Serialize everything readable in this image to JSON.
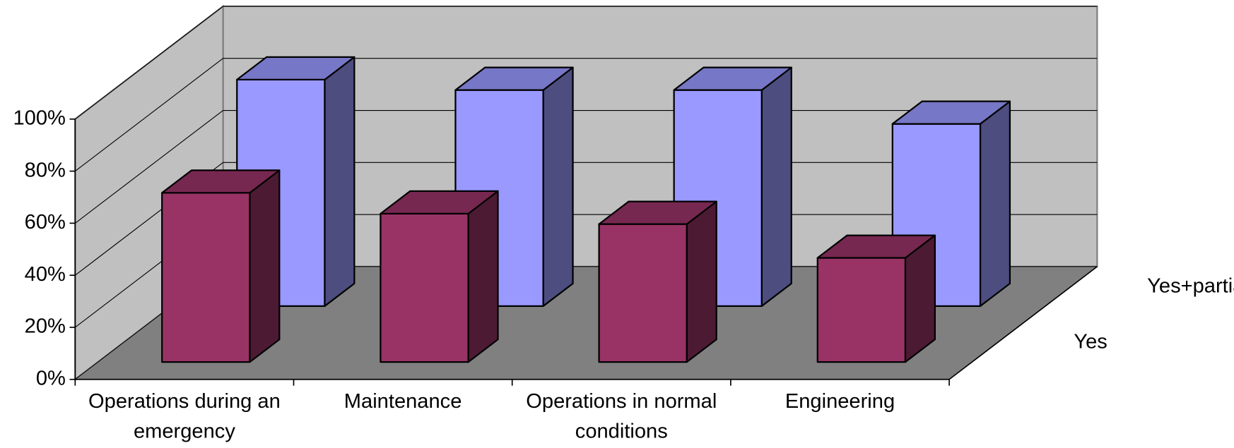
{
  "chart_data": {
    "type": "bar3d",
    "categories": [
      "Operations during an emergency",
      "Maintenance",
      "Operations in normal conditions",
      "Engineering"
    ],
    "series": [
      {
        "name": "Yes",
        "color": "#993366",
        "values": [
          65,
          57,
          53,
          40
        ]
      },
      {
        "name": "Yes+partially",
        "color": "#9999ff",
        "values": [
          87,
          83,
          83,
          70
        ]
      }
    ],
    "ylim": [
      0,
      100
    ],
    "yticks": [
      {
        "value": 0,
        "label": "0%"
      },
      {
        "value": 20,
        "label": "20%"
      },
      {
        "value": 40,
        "label": "40%"
      },
      {
        "value": 60,
        "label": "60%"
      },
      {
        "value": 80,
        "label": "80%"
      },
      {
        "value": 100,
        "label": "100%"
      }
    ],
    "grid": true
  }
}
